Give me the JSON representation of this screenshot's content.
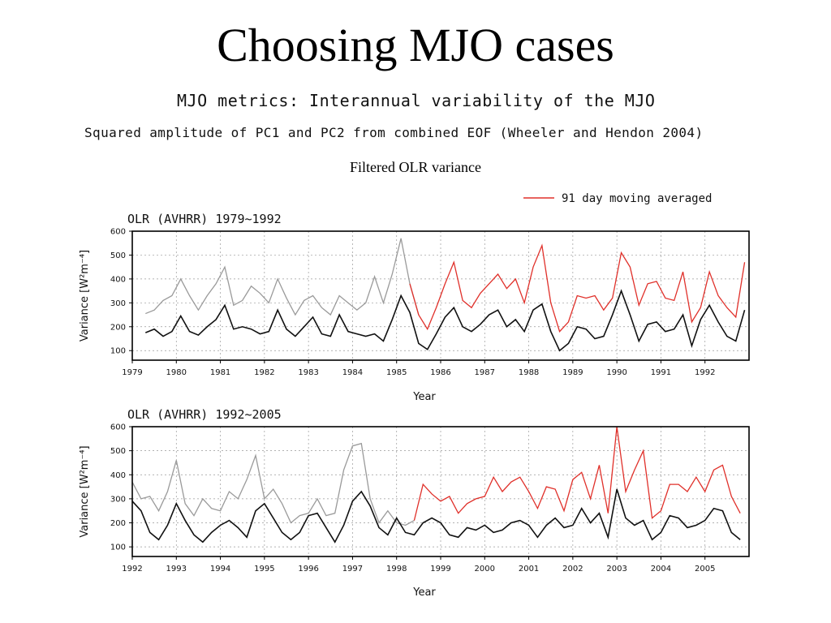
{
  "slide": {
    "title": "Choosing MJO cases",
    "subtitle1": "MJO metrics: Interannual variability of the MJO",
    "subtitle2": "Squared amplitude of PC1 and PC2 from combined EOF (Wheeler and Hendon 2004)",
    "note": "Filtered OLR variance"
  },
  "legend": {
    "label": "91 day moving averaged"
  },
  "colors": {
    "highlight": "#e0302a",
    "filtered": "#111111",
    "raw": "#9a9a9a"
  },
  "chart_data": [
    {
      "type": "line",
      "title": "OLR (AVHRR) 1979~1992",
      "xlabel": "Year",
      "ylabel": "Variance [W²m⁻⁴]",
      "x_ticks": [
        "1979",
        "1980",
        "1981",
        "1982",
        "1983",
        "1984",
        "1985",
        "1986",
        "1987",
        "1988",
        "1989",
        "1990",
        "1991",
        "1992"
      ],
      "y_ticks": [
        100,
        200,
        300,
        400,
        500,
        600
      ],
      "xlim": [
        1979.0,
        1993.0
      ],
      "ylim": [
        60,
        600
      ],
      "grid": true,
      "series": [
        {
          "name": "91 day moving averaged",
          "role": "upper",
          "x": [
            1979.3,
            1979.5,
            1979.7,
            1979.9,
            1980.1,
            1980.3,
            1980.5,
            1980.7,
            1980.9,
            1981.1,
            1981.3,
            1981.5,
            1981.7,
            1981.9,
            1982.1,
            1982.3,
            1982.5,
            1982.7,
            1982.9,
            1983.1,
            1983.3,
            1983.5,
            1983.7,
            1983.9,
            1984.1,
            1984.3,
            1984.5,
            1984.7,
            1984.9,
            1985.1,
            1985.3,
            1985.5,
            1985.7,
            1985.9,
            1986.1,
            1986.3,
            1986.5,
            1986.7,
            1986.9,
            1987.1,
            1987.3,
            1987.5,
            1987.7,
            1987.9,
            1988.1,
            1988.3,
            1988.5,
            1988.7,
            1988.9,
            1989.1,
            1989.3,
            1989.5,
            1989.7,
            1989.9,
            1990.1,
            1990.3,
            1990.5,
            1990.7,
            1990.9,
            1991.1,
            1991.3,
            1991.5,
            1991.7,
            1991.9,
            1992.1,
            1992.3,
            1992.5,
            1992.7,
            1992.9
          ],
          "y": [
            255,
            270,
            310,
            330,
            400,
            330,
            270,
            330,
            380,
            450,
            290,
            310,
            370,
            340,
            300,
            400,
            320,
            250,
            310,
            330,
            280,
            250,
            330,
            300,
            270,
            300,
            410,
            300,
            420,
            570,
            380,
            250,
            190,
            280,
            380,
            470,
            310,
            280,
            340,
            380,
            420,
            360,
            400,
            300,
            450,
            540,
            300,
            180,
            220,
            330,
            320,
            330,
            270,
            320,
            510,
            450,
            290,
            380,
            390,
            320,
            310,
            430,
            220,
            280,
            430,
            330,
            280,
            240,
            470
          ]
        },
        {
          "name": "",
          "role": "lower",
          "x": [
            1979.3,
            1979.5,
            1979.7,
            1979.9,
            1980.1,
            1980.3,
            1980.5,
            1980.7,
            1980.9,
            1981.1,
            1981.3,
            1981.5,
            1981.7,
            1981.9,
            1982.1,
            1982.3,
            1982.5,
            1982.7,
            1982.9,
            1983.1,
            1983.3,
            1983.5,
            1983.7,
            1983.9,
            1984.1,
            1984.3,
            1984.5,
            1984.7,
            1984.9,
            1985.1,
            1985.3,
            1985.5,
            1985.7,
            1985.9,
            1986.1,
            1986.3,
            1986.5,
            1986.7,
            1986.9,
            1987.1,
            1987.3,
            1987.5,
            1987.7,
            1987.9,
            1988.1,
            1988.3,
            1988.5,
            1988.7,
            1988.9,
            1989.1,
            1989.3,
            1989.5,
            1989.7,
            1989.9,
            1990.1,
            1990.3,
            1990.5,
            1990.7,
            1990.9,
            1991.1,
            1991.3,
            1991.5,
            1991.7,
            1991.9,
            1992.1,
            1992.3,
            1992.5,
            1992.7,
            1992.9
          ],
          "y": [
            175,
            190,
            160,
            180,
            245,
            180,
            165,
            200,
            230,
            290,
            190,
            200,
            190,
            170,
            180,
            270,
            190,
            160,
            200,
            240,
            170,
            160,
            250,
            180,
            170,
            160,
            170,
            140,
            230,
            330,
            260,
            130,
            105,
            170,
            240,
            280,
            200,
            180,
            210,
            250,
            270,
            200,
            230,
            180,
            270,
            295,
            180,
            100,
            130,
            200,
            190,
            150,
            160,
            250,
            350,
            250,
            140,
            210,
            220,
            180,
            190,
            250,
            120,
            230,
            290,
            220,
            160,
            140,
            270
          ]
        }
      ]
    },
    {
      "type": "line",
      "title": "OLR (AVHRR) 1992~2005",
      "xlabel": "Year",
      "ylabel": "Variance [W²m⁻⁴]",
      "x_ticks": [
        "1992",
        "1993",
        "1994",
        "1995",
        "1996",
        "1997",
        "1998",
        "1999",
        "2000",
        "2001",
        "2002",
        "2003",
        "2004",
        "2005"
      ],
      "y_ticks": [
        100,
        200,
        300,
        400,
        500,
        600
      ],
      "xlim": [
        1992.0,
        2006.0
      ],
      "ylim": [
        60,
        600
      ],
      "grid": true,
      "series": [
        {
          "name": "91 day moving averaged",
          "role": "upper",
          "x": [
            1992.0,
            1992.2,
            1992.4,
            1992.6,
            1992.8,
            1993.0,
            1993.2,
            1993.4,
            1993.6,
            1993.8,
            1994.0,
            1994.2,
            1994.4,
            1994.6,
            1994.8,
            1995.0,
            1995.2,
            1995.4,
            1995.6,
            1995.8,
            1996.0,
            1996.2,
            1996.4,
            1996.6,
            1996.8,
            1997.0,
            1997.2,
            1997.4,
            1997.6,
            1997.8,
            1998.0,
            1998.2,
            1998.4,
            1998.6,
            1998.8,
            1999.0,
            1999.2,
            1999.4,
            1999.6,
            1999.8,
            2000.0,
            2000.2,
            2000.4,
            2000.6,
            2000.8,
            2001.0,
            2001.2,
            2001.4,
            2001.6,
            2001.8,
            2002.0,
            2002.2,
            2002.4,
            2002.6,
            2002.8,
            2003.0,
            2003.2,
            2003.4,
            2003.6,
            2003.8,
            2004.0,
            2004.2,
            2004.4,
            2004.6,
            2004.8,
            2005.0,
            2005.2,
            2005.4,
            2005.6,
            2005.8
          ],
          "y": [
            370,
            300,
            310,
            250,
            330,
            460,
            280,
            230,
            300,
            260,
            250,
            330,
            300,
            380,
            480,
            300,
            340,
            280,
            200,
            230,
            240,
            300,
            230,
            240,
            420,
            520,
            530,
            300,
            200,
            250,
            200,
            190,
            210,
            360,
            320,
            290,
            310,
            240,
            280,
            300,
            310,
            390,
            330,
            370,
            390,
            330,
            260,
            350,
            340,
            250,
            380,
            410,
            300,
            440,
            240,
            600,
            330,
            420,
            500,
            220,
            250,
            360,
            360,
            330,
            390,
            330,
            420,
            440,
            310,
            240
          ]
        },
        {
          "name": "",
          "role": "lower",
          "x": [
            1992.0,
            1992.2,
            1992.4,
            1992.6,
            1992.8,
            1993.0,
            1993.2,
            1993.4,
            1993.6,
            1993.8,
            1994.0,
            1994.2,
            1994.4,
            1994.6,
            1994.8,
            1995.0,
            1995.2,
            1995.4,
            1995.6,
            1995.8,
            1996.0,
            1996.2,
            1996.4,
            1996.6,
            1996.8,
            1997.0,
            1997.2,
            1997.4,
            1997.6,
            1997.8,
            1998.0,
            1998.2,
            1998.4,
            1998.6,
            1998.8,
            1999.0,
            1999.2,
            1999.4,
            1999.6,
            1999.8,
            2000.0,
            2000.2,
            2000.4,
            2000.6,
            2000.8,
            2001.0,
            2001.2,
            2001.4,
            2001.6,
            2001.8,
            2002.0,
            2002.2,
            2002.4,
            2002.6,
            2002.8,
            2003.0,
            2003.2,
            2003.4,
            2003.6,
            2003.8,
            2004.0,
            2004.2,
            2004.4,
            2004.6,
            2004.8,
            2005.0,
            2005.2,
            2005.4,
            2005.6,
            2005.8
          ],
          "y": [
            290,
            250,
            160,
            130,
            190,
            280,
            210,
            150,
            120,
            160,
            190,
            210,
            180,
            140,
            250,
            280,
            220,
            160,
            130,
            160,
            230,
            240,
            180,
            120,
            190,
            290,
            330,
            270,
            180,
            150,
            220,
            160,
            150,
            200,
            220,
            200,
            150,
            140,
            180,
            170,
            190,
            160,
            170,
            200,
            210,
            190,
            140,
            190,
            220,
            180,
            190,
            260,
            200,
            240,
            140,
            340,
            220,
            190,
            210,
            130,
            160,
            230,
            220,
            180,
            190,
            210,
            260,
            250,
            160,
            130
          ]
        }
      ]
    }
  ]
}
